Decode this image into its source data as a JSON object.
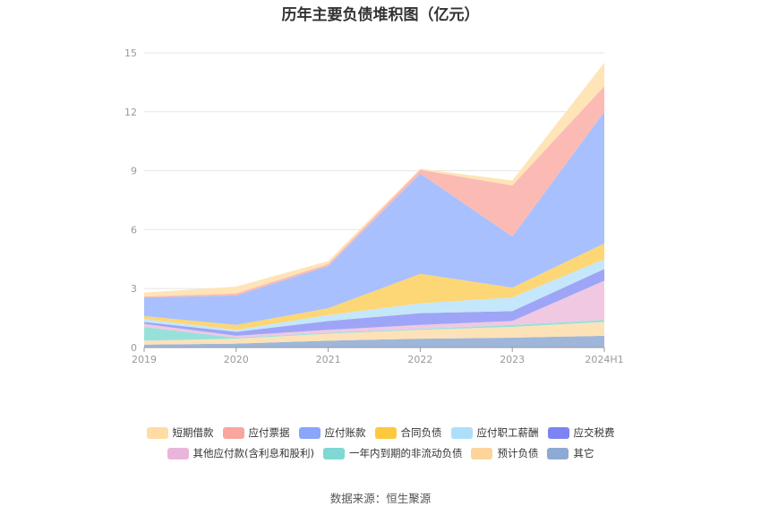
{
  "chart_data": {
    "type": "area",
    "stacked": true,
    "title": "历年主要负债堆积图（亿元）",
    "x": [
      "2019",
      "2020",
      "2021",
      "2022",
      "2023",
      "2024H1"
    ],
    "ylim": [
      0,
      15
    ],
    "yticks": [
      0,
      3,
      6,
      9,
      12,
      15
    ],
    "grid": true,
    "legend_position": "bottom",
    "series": [
      {
        "name": "其它",
        "color": "#9fb6db",
        "values": [
          0.15,
          0.2,
          0.35,
          0.45,
          0.5,
          0.6
        ]
      },
      {
        "name": "预计负债",
        "color": "#fde2b8",
        "values": [
          0.2,
          0.25,
          0.35,
          0.45,
          0.55,
          0.7
        ]
      },
      {
        "name": "一年内到期的非流动负债",
        "color": "#98e1da",
        "values": [
          0.7,
          0.05,
          0.05,
          0.05,
          0.1,
          0.1
        ]
      },
      {
        "name": "其他应付款(含利息和股利)",
        "color": "#f0c8e2",
        "values": [
          0.15,
          0.1,
          0.15,
          0.2,
          0.2,
          2.0
        ]
      },
      {
        "name": "应交税费",
        "color": "#9ea5f6",
        "values": [
          0.1,
          0.2,
          0.45,
          0.6,
          0.5,
          0.6
        ]
      },
      {
        "name": "应付职工薪酬",
        "color": "#c4e7fb",
        "values": [
          0.15,
          0.1,
          0.3,
          0.5,
          0.7,
          0.5
        ]
      },
      {
        "name": "合同负债",
        "color": "#fdd675",
        "values": [
          0.15,
          0.25,
          0.35,
          1.5,
          0.5,
          0.8
        ]
      },
      {
        "name": "应付账款",
        "color": "#a8c0fd",
        "values": [
          0.95,
          1.5,
          2.15,
          5.1,
          2.6,
          6.7
        ]
      },
      {
        "name": "应付票据",
        "color": "#fcbab5",
        "values": [
          0.05,
          0.1,
          0.1,
          0.2,
          2.6,
          1.3
        ]
      },
      {
        "name": "短期借款",
        "color": "#fee4b7",
        "values": [
          0.2,
          0.35,
          0.15,
          0.05,
          0.25,
          1.2
        ]
      }
    ],
    "legend_rows": [
      [
        {
          "name": "短期借款",
          "color": "#fedca4"
        },
        {
          "name": "应付票据",
          "color": "#f9a69f"
        },
        {
          "name": "应付账款",
          "color": "#89a6fb"
        },
        {
          "name": "合同负债",
          "color": "#fdc83e"
        },
        {
          "name": "应付职工薪酬",
          "color": "#addffb"
        },
        {
          "name": "应交税费",
          "color": "#7c83f3"
        }
      ],
      [
        {
          "name": "其他应付款(含利息和股利)",
          "color": "#eab5da"
        },
        {
          "name": "一年内到期的非流动负债",
          "color": "#7fd8d2"
        },
        {
          "name": "预计负债",
          "color": "#fdd49a"
        },
        {
          "name": "其它",
          "color": "#8ea9d4"
        }
      ]
    ]
  },
  "source": "数据来源：恒生聚源"
}
